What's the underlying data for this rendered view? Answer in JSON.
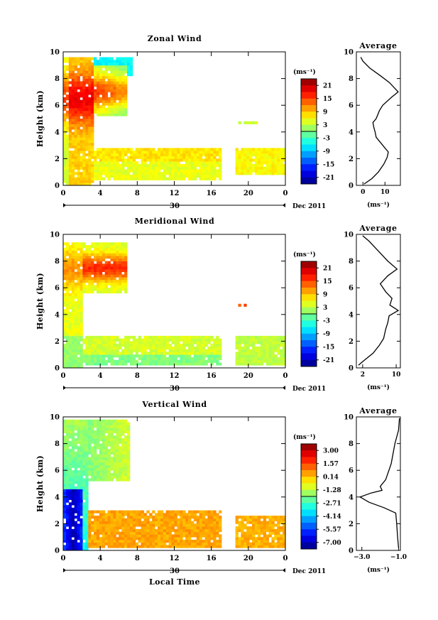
{
  "chart_data": [
    {
      "type": "heatmap",
      "title": "Zonal Wind",
      "ylabel": "Height (km)",
      "xlim": [
        0,
        24
      ],
      "ylim": [
        0,
        10
      ],
      "x_ticks": [
        "0",
        "4",
        "8",
        "12",
        "16",
        "20",
        "0"
      ],
      "y_ticks": [
        "0",
        "2",
        "4",
        "6",
        "8",
        "10"
      ],
      "date_axis": {
        "day_label": "30",
        "month_label": "Dec 2011"
      },
      "colorbar": {
        "unit": "(ms⁻¹)",
        "tick_labels": [
          "21",
          "15",
          "9",
          "3",
          "-3",
          "-9",
          "-15",
          "-21"
        ],
        "range": [
          -24,
          24
        ]
      },
      "profile": {
        "title": "Average",
        "xlabel": "(ms⁻¹)",
        "x_ticks": [
          "0",
          "10"
        ],
        "xlim": [
          -3,
          17
        ],
        "points": [
          [
            0.5,
            0.1
          ],
          [
            4,
            0.5
          ],
          [
            7,
            1
          ],
          [
            9.5,
            1.6
          ],
          [
            11,
            2.1
          ],
          [
            11.5,
            2.5
          ],
          [
            10,
            2.8
          ],
          [
            8,
            3.2
          ],
          [
            6,
            3.6
          ],
          [
            5.5,
            4.0
          ],
          [
            5,
            4.3
          ],
          [
            4.5,
            4.7
          ],
          [
            6,
            5.0
          ],
          [
            7.5,
            5.6
          ],
          [
            9,
            6.0
          ],
          [
            13,
            6.6
          ],
          [
            16,
            7.0
          ],
          [
            12,
            7.7
          ],
          [
            8,
            8.2
          ],
          [
            3,
            8.8
          ],
          [
            0,
            9.3
          ],
          [
            -1,
            9.6
          ]
        ]
      }
    },
    {
      "type": "heatmap",
      "title": "Meridional Wind",
      "ylabel": "Height (km)",
      "xlim": [
        0,
        24
      ],
      "ylim": [
        0,
        10
      ],
      "x_ticks": [
        "0",
        "4",
        "8",
        "12",
        "16",
        "20",
        "0"
      ],
      "y_ticks": [
        "0",
        "2",
        "4",
        "6",
        "8",
        "10"
      ],
      "date_axis": {
        "day_label": "30",
        "month_label": "Dec 2011"
      },
      "colorbar": {
        "unit": "(ms⁻¹)",
        "tick_labels": [
          "21",
          "15",
          "9",
          "3",
          "-3",
          "-9",
          "-15",
          "-21"
        ],
        "range": [
          -24,
          24
        ]
      },
      "profile": {
        "title": "Average",
        "xlabel": "(ms⁻¹)",
        "x_ticks": [
          "2",
          "10"
        ],
        "xlim": [
          0.5,
          11
        ],
        "points": [
          [
            1,
            0.2
          ],
          [
            2.5,
            0.6
          ],
          [
            4.5,
            1.1
          ],
          [
            6,
            1.7
          ],
          [
            7,
            2.2
          ],
          [
            7.5,
            2.9
          ],
          [
            8,
            3.4
          ],
          [
            8.3,
            3.9
          ],
          [
            10.5,
            4.3
          ],
          [
            8.5,
            4.7
          ],
          [
            9,
            5.2
          ],
          [
            7.5,
            5.7
          ],
          [
            6.2,
            6.3
          ],
          [
            8,
            6.9
          ],
          [
            10.2,
            7.4
          ],
          [
            8,
            8.0
          ],
          [
            6.5,
            8.5
          ],
          [
            5,
            9.0
          ],
          [
            3.5,
            9.5
          ],
          [
            2,
            9.9
          ]
        ]
      }
    },
    {
      "type": "heatmap",
      "title": "Vertical Wind",
      "ylabel": "Height (km)",
      "xlabel": "Local Time",
      "xlim": [
        0,
        24
      ],
      "ylim": [
        0,
        10
      ],
      "x_ticks": [
        "0",
        "4",
        "8",
        "12",
        "16",
        "20",
        "0"
      ],
      "y_ticks": [
        "0",
        "2",
        "4",
        "6",
        "8",
        "10"
      ],
      "date_axis": {
        "day_label": "30",
        "month_label": "Dec 2011"
      },
      "colorbar": {
        "unit": "(ms⁻¹)",
        "tick_labels": [
          "3.00",
          "1.57",
          "0.14",
          "-1.28",
          "-2.71",
          "-4.14",
          "-5.57",
          "-7.00"
        ],
        "range": [
          -7.7,
          3.7
        ]
      },
      "profile": {
        "title": "Average",
        "xlabel": "(ms⁻¹)",
        "x_ticks": [
          "−3.0",
          "−1.0"
        ],
        "xlim": [
          -3.3,
          -0.9
        ],
        "points": [
          [
            -1.0,
            0.2
          ],
          [
            -1.05,
            1
          ],
          [
            -1.1,
            2
          ],
          [
            -1.15,
            2.8
          ],
          [
            -1.8,
            3.2
          ],
          [
            -2.6,
            3.6
          ],
          [
            -3.1,
            4.0
          ],
          [
            -2.5,
            4.3
          ],
          [
            -1.9,
            4.5
          ],
          [
            -2.0,
            4.8
          ],
          [
            -1.7,
            5.3
          ],
          [
            -1.4,
            6.5
          ],
          [
            -1.2,
            8
          ],
          [
            -1.0,
            9
          ],
          [
            -0.95,
            9.9
          ]
        ]
      }
    }
  ]
}
